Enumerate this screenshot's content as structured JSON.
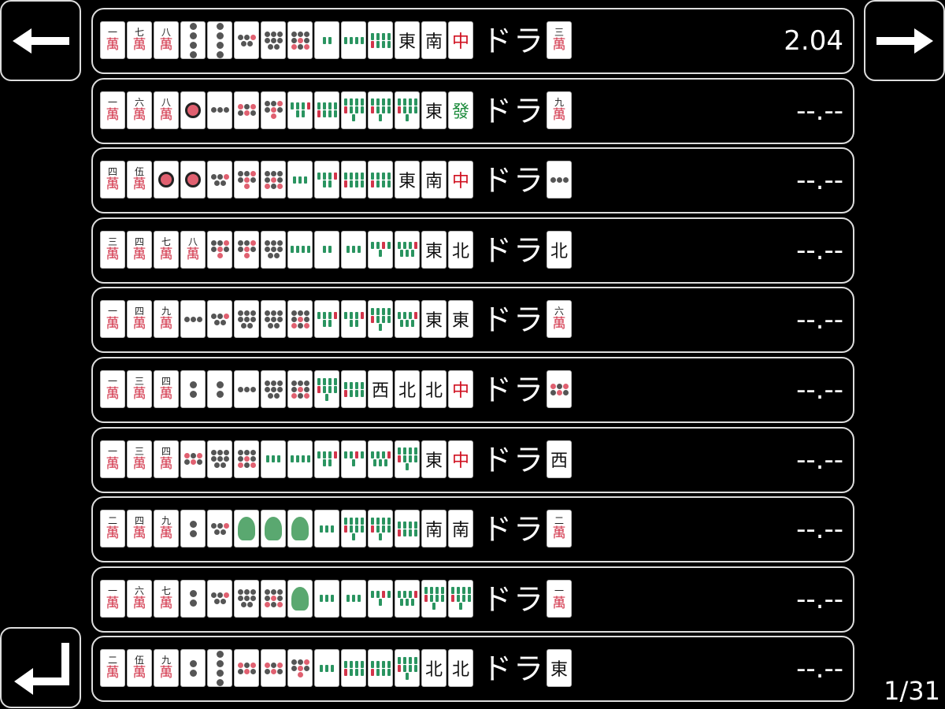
{
  "nav": {
    "back_icon": "arrow-left-icon",
    "forward_icon": "arrow-right-icon",
    "enter_icon": "return-arrow-icon"
  },
  "dora_label": "ドラ",
  "rows": [
    {
      "tiles": [
        "1m",
        "7m",
        "8m",
        "4p",
        "4p",
        "5p",
        "8p",
        "9p",
        "2s",
        "4s",
        "8s",
        "E",
        "S",
        "C"
      ],
      "dora": "3m",
      "score": "2.04"
    },
    {
      "tiles": [
        "1m",
        "6m",
        "8m",
        "1p",
        "3p",
        "6p",
        "7p",
        "6s",
        "8s",
        "9s",
        "9s",
        "9s",
        "E",
        "F"
      ],
      "dora": "9m",
      "score": "--.--"
    },
    {
      "tiles": [
        "4m",
        "5m",
        "1p",
        "1p",
        "5p",
        "7p",
        "9p",
        "3s",
        "6s",
        "8s",
        "8s",
        "E",
        "S",
        "C"
      ],
      "dora": "3p",
      "score": "--.--"
    },
    {
      "tiles": [
        "3m",
        "4m",
        "7m",
        "8m",
        "7p",
        "7p",
        "8p",
        "4s",
        "2s",
        "3s",
        "5s",
        "7s",
        "E",
        "N"
      ],
      "dora": "N",
      "score": "--.--"
    },
    {
      "tiles": [
        "1m",
        "4m",
        "9m",
        "3p",
        "5p",
        "8p",
        "8p",
        "9p",
        "6s",
        "6s",
        "9s",
        "7s",
        "E",
        "E"
      ],
      "dora": "6m",
      "score": "--.--"
    },
    {
      "tiles": [
        "1m",
        "3m",
        "4m",
        "2p",
        "2p",
        "3p",
        "8p",
        "9p",
        "9s",
        "8s",
        "W",
        "N",
        "N",
        "C"
      ],
      "dora": "6p",
      "score": "--.--"
    },
    {
      "tiles": [
        "1m",
        "3m",
        "4m",
        "6p",
        "8p",
        "9p",
        "3s",
        "4s",
        "6s",
        "5s",
        "7s",
        "9s",
        "E",
        "C"
      ],
      "dora": "W",
      "score": "--.--"
    },
    {
      "tiles": [
        "2m",
        "4m",
        "9m",
        "2p",
        "5p",
        "1s",
        "1s",
        "1s",
        "3s",
        "9s",
        "9s",
        "8s",
        "S",
        "S"
      ],
      "dora": "2m",
      "score": "--.--"
    },
    {
      "tiles": [
        "1m",
        "6m",
        "7m",
        "2p",
        "5p",
        "8p",
        "9p",
        "1s",
        "3s",
        "3s",
        "5s",
        "7s",
        "9s",
        "9s"
      ],
      "dora": "1m",
      "score": "--.--"
    },
    {
      "tiles": [
        "2m",
        "5m",
        "9m",
        "2p",
        "4p",
        "6p",
        "6p",
        "7p",
        "3s",
        "8s",
        "8s",
        "9s",
        "N",
        "N"
      ],
      "dora": "E",
      "score": "--.--"
    }
  ],
  "pagination": "1/31"
}
